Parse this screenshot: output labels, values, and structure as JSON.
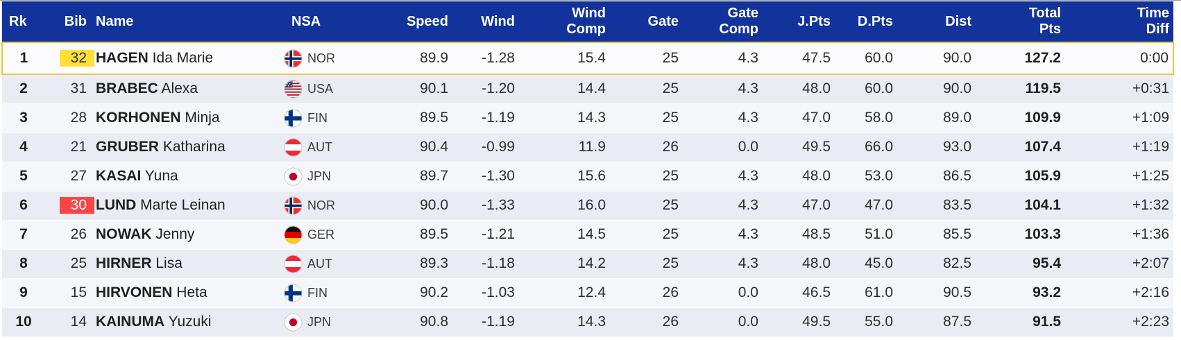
{
  "table": {
    "columns": [
      {
        "key": "rk",
        "label": "Rk"
      },
      {
        "key": "bib",
        "label": "Bib"
      },
      {
        "key": "name",
        "label": "Name"
      },
      {
        "key": "nsa",
        "label": "NSA"
      },
      {
        "key": "speed",
        "label": "Speed"
      },
      {
        "key": "wind",
        "label": "Wind"
      },
      {
        "key": "wind_comp",
        "label": "Wind\nComp"
      },
      {
        "key": "gate",
        "label": "Gate"
      },
      {
        "key": "gate_comp",
        "label": "Gate\nComp"
      },
      {
        "key": "j_pts",
        "label": "J.Pts"
      },
      {
        "key": "d_pts",
        "label": "D.Pts"
      },
      {
        "key": "dist",
        "label": "Dist"
      },
      {
        "key": "total_pts",
        "label": "Total\nPts"
      },
      {
        "key": "time_diff",
        "label": "Time\nDiff"
      }
    ],
    "rows": [
      {
        "rank": "1",
        "bib": "32",
        "bib_highlight": "yellow",
        "leader": true,
        "surname": "HAGEN",
        "given_name": "Ida Marie",
        "nsa": "NOR",
        "speed": "89.9",
        "wind": "-1.28",
        "wind_comp": "15.4",
        "gate": "25",
        "gate_comp": "4.3",
        "j_pts": "47.5",
        "d_pts": "60.0",
        "dist": "90.0",
        "total_pts": "127.2",
        "time_diff": "0:00"
      },
      {
        "rank": "2",
        "bib": "31",
        "bib_highlight": null,
        "leader": false,
        "surname": "BRABEC",
        "given_name": "Alexa",
        "nsa": "USA",
        "speed": "90.1",
        "wind": "-1.20",
        "wind_comp": "14.4",
        "gate": "25",
        "gate_comp": "4.3",
        "j_pts": "48.0",
        "d_pts": "60.0",
        "dist": "90.0",
        "total_pts": "119.5",
        "time_diff": "+0:31"
      },
      {
        "rank": "3",
        "bib": "28",
        "bib_highlight": null,
        "leader": false,
        "surname": "KORHONEN",
        "given_name": "Minja",
        "nsa": "FIN",
        "speed": "89.5",
        "wind": "-1.19",
        "wind_comp": "14.3",
        "gate": "25",
        "gate_comp": "4.3",
        "j_pts": "47.0",
        "d_pts": "58.0",
        "dist": "89.0",
        "total_pts": "109.9",
        "time_diff": "+1:09"
      },
      {
        "rank": "4",
        "bib": "21",
        "bib_highlight": null,
        "leader": false,
        "surname": "GRUBER",
        "given_name": "Katharina",
        "nsa": "AUT",
        "speed": "90.4",
        "wind": "-0.99",
        "wind_comp": "11.9",
        "gate": "26",
        "gate_comp": "0.0",
        "j_pts": "49.5",
        "d_pts": "66.0",
        "dist": "93.0",
        "total_pts": "107.4",
        "time_diff": "+1:19"
      },
      {
        "rank": "5",
        "bib": "27",
        "bib_highlight": null,
        "leader": false,
        "surname": "KASAI",
        "given_name": "Yuna",
        "nsa": "JPN",
        "speed": "89.7",
        "wind": "-1.30",
        "wind_comp": "15.6",
        "gate": "25",
        "gate_comp": "4.3",
        "j_pts": "48.0",
        "d_pts": "53.0",
        "dist": "86.5",
        "total_pts": "105.9",
        "time_diff": "+1:25"
      },
      {
        "rank": "6",
        "bib": "30",
        "bib_highlight": "red",
        "leader": false,
        "surname": "LUND",
        "given_name": "Marte Leinan",
        "nsa": "NOR",
        "speed": "90.0",
        "wind": "-1.33",
        "wind_comp": "16.0",
        "gate": "25",
        "gate_comp": "4.3",
        "j_pts": "47.0",
        "d_pts": "47.0",
        "dist": "83.5",
        "total_pts": "104.1",
        "time_diff": "+1:32"
      },
      {
        "rank": "7",
        "bib": "26",
        "bib_highlight": null,
        "leader": false,
        "surname": "NOWAK",
        "given_name": "Jenny",
        "nsa": "GER",
        "speed": "89.5",
        "wind": "-1.21",
        "wind_comp": "14.5",
        "gate": "25",
        "gate_comp": "4.3",
        "j_pts": "48.5",
        "d_pts": "51.0",
        "dist": "85.5",
        "total_pts": "103.3",
        "time_diff": "+1:36"
      },
      {
        "rank": "8",
        "bib": "25",
        "bib_highlight": null,
        "leader": false,
        "surname": "HIRNER",
        "given_name": "Lisa",
        "nsa": "AUT",
        "speed": "89.3",
        "wind": "-1.18",
        "wind_comp": "14.2",
        "gate": "25",
        "gate_comp": "4.3",
        "j_pts": "48.0",
        "d_pts": "45.0",
        "dist": "82.5",
        "total_pts": "95.4",
        "time_diff": "+2:07"
      },
      {
        "rank": "9",
        "bib": "15",
        "bib_highlight": null,
        "leader": false,
        "surname": "HIRVONEN",
        "given_name": "Heta",
        "nsa": "FIN",
        "speed": "90.2",
        "wind": "-1.03",
        "wind_comp": "12.4",
        "gate": "26",
        "gate_comp": "0.0",
        "j_pts": "46.5",
        "d_pts": "61.0",
        "dist": "90.5",
        "total_pts": "93.2",
        "time_diff": "+2:16"
      },
      {
        "rank": "10",
        "bib": "14",
        "bib_highlight": null,
        "leader": false,
        "surname": "KAINUMA",
        "given_name": "Yuzuki",
        "nsa": "JPN",
        "speed": "90.8",
        "wind": "-1.19",
        "wind_comp": "14.3",
        "gate": "26",
        "gate_comp": "0.0",
        "j_pts": "49.5",
        "d_pts": "55.0",
        "dist": "87.5",
        "total_pts": "91.5",
        "time_diff": "+2:23"
      }
    ]
  },
  "colors": {
    "header_bg": "#12339C",
    "header_text": "#FFFFFF",
    "leader_border": "#EEC43F",
    "bib_yellow": "#FFE135",
    "bib_red": "#F94545",
    "bib_red_text": "#FFFFFF",
    "row_leader_bg": "#FCFCFE",
    "row_dark": "#EAECF3",
    "row_light": "#F5F6F9"
  }
}
